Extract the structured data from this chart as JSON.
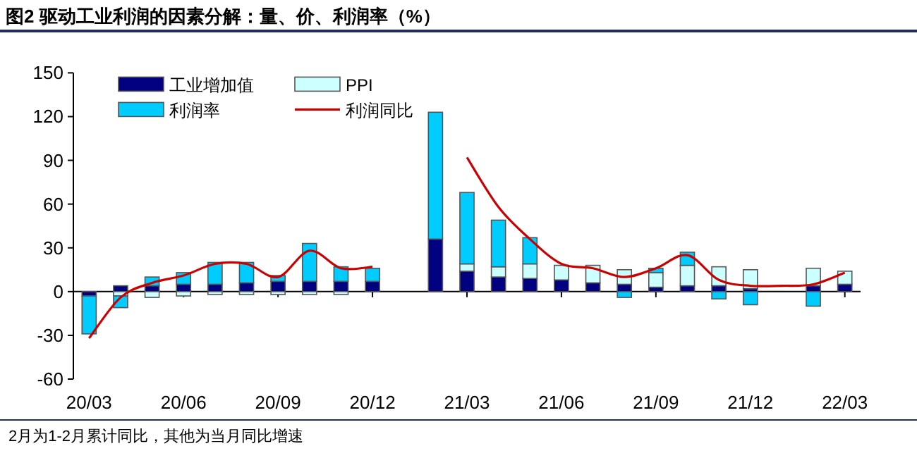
{
  "chart_data": {
    "type": "bar",
    "stacked": true,
    "title": "图2  驱动工业利润的因素分解：量、价、利润率（%）",
    "annotations": [
      "2月为1-2月累计同比，其他为当月同比增速"
    ],
    "categories": [
      "20/03",
      null,
      null,
      "20/06",
      null,
      null,
      "20/09",
      null,
      null,
      "20/12",
      null,
      null,
      "21/03",
      null,
      null,
      "21/06",
      null,
      null,
      "21/09",
      null,
      null,
      "21/12",
      null,
      null,
      "22/03"
    ],
    "series": [
      {
        "name": "工业增加值",
        "color": "#000080",
        "values": [
          -3,
          4,
          4,
          5,
          5,
          6,
          7,
          7,
          7,
          7,
          null,
          36,
          14,
          10,
          9,
          8,
          6,
          5,
          3,
          4,
          4,
          2,
          null,
          4,
          5
        ]
      },
      {
        "name": "PPI",
        "color": "#ccffff",
        "values": [
          null,
          -3,
          -4,
          -3,
          -2,
          -2,
          -2,
          -2,
          -2,
          0,
          null,
          0,
          5,
          7,
          10,
          10,
          12,
          10,
          10,
          14,
          13,
          13,
          null,
          12,
          9
        ]
      },
      {
        "name": "利润率",
        "color": "#00ccff",
        "values": [
          -26,
          -8,
          6,
          8,
          15,
          14,
          4,
          26,
          10,
          9,
          null,
          87,
          49,
          32,
          18,
          0,
          0,
          -4,
          3,
          9,
          -5,
          -9,
          null,
          -10,
          0
        ]
      },
      {
        "name": "利润同比",
        "type": "line",
        "color": "#cc0000",
        "values": [
          -32,
          -4,
          6,
          11,
          19,
          19,
          10,
          28,
          16,
          17,
          null,
          null,
          92,
          58,
          36,
          19,
          16,
          10,
          16,
          25,
          8,
          4,
          4,
          5,
          13
        ]
      }
    ],
    "ylim": [
      -60,
      150
    ],
    "yticks": [
      -60,
      -30,
      0,
      30,
      60,
      90,
      120,
      150
    ],
    "legend": "top left"
  }
}
